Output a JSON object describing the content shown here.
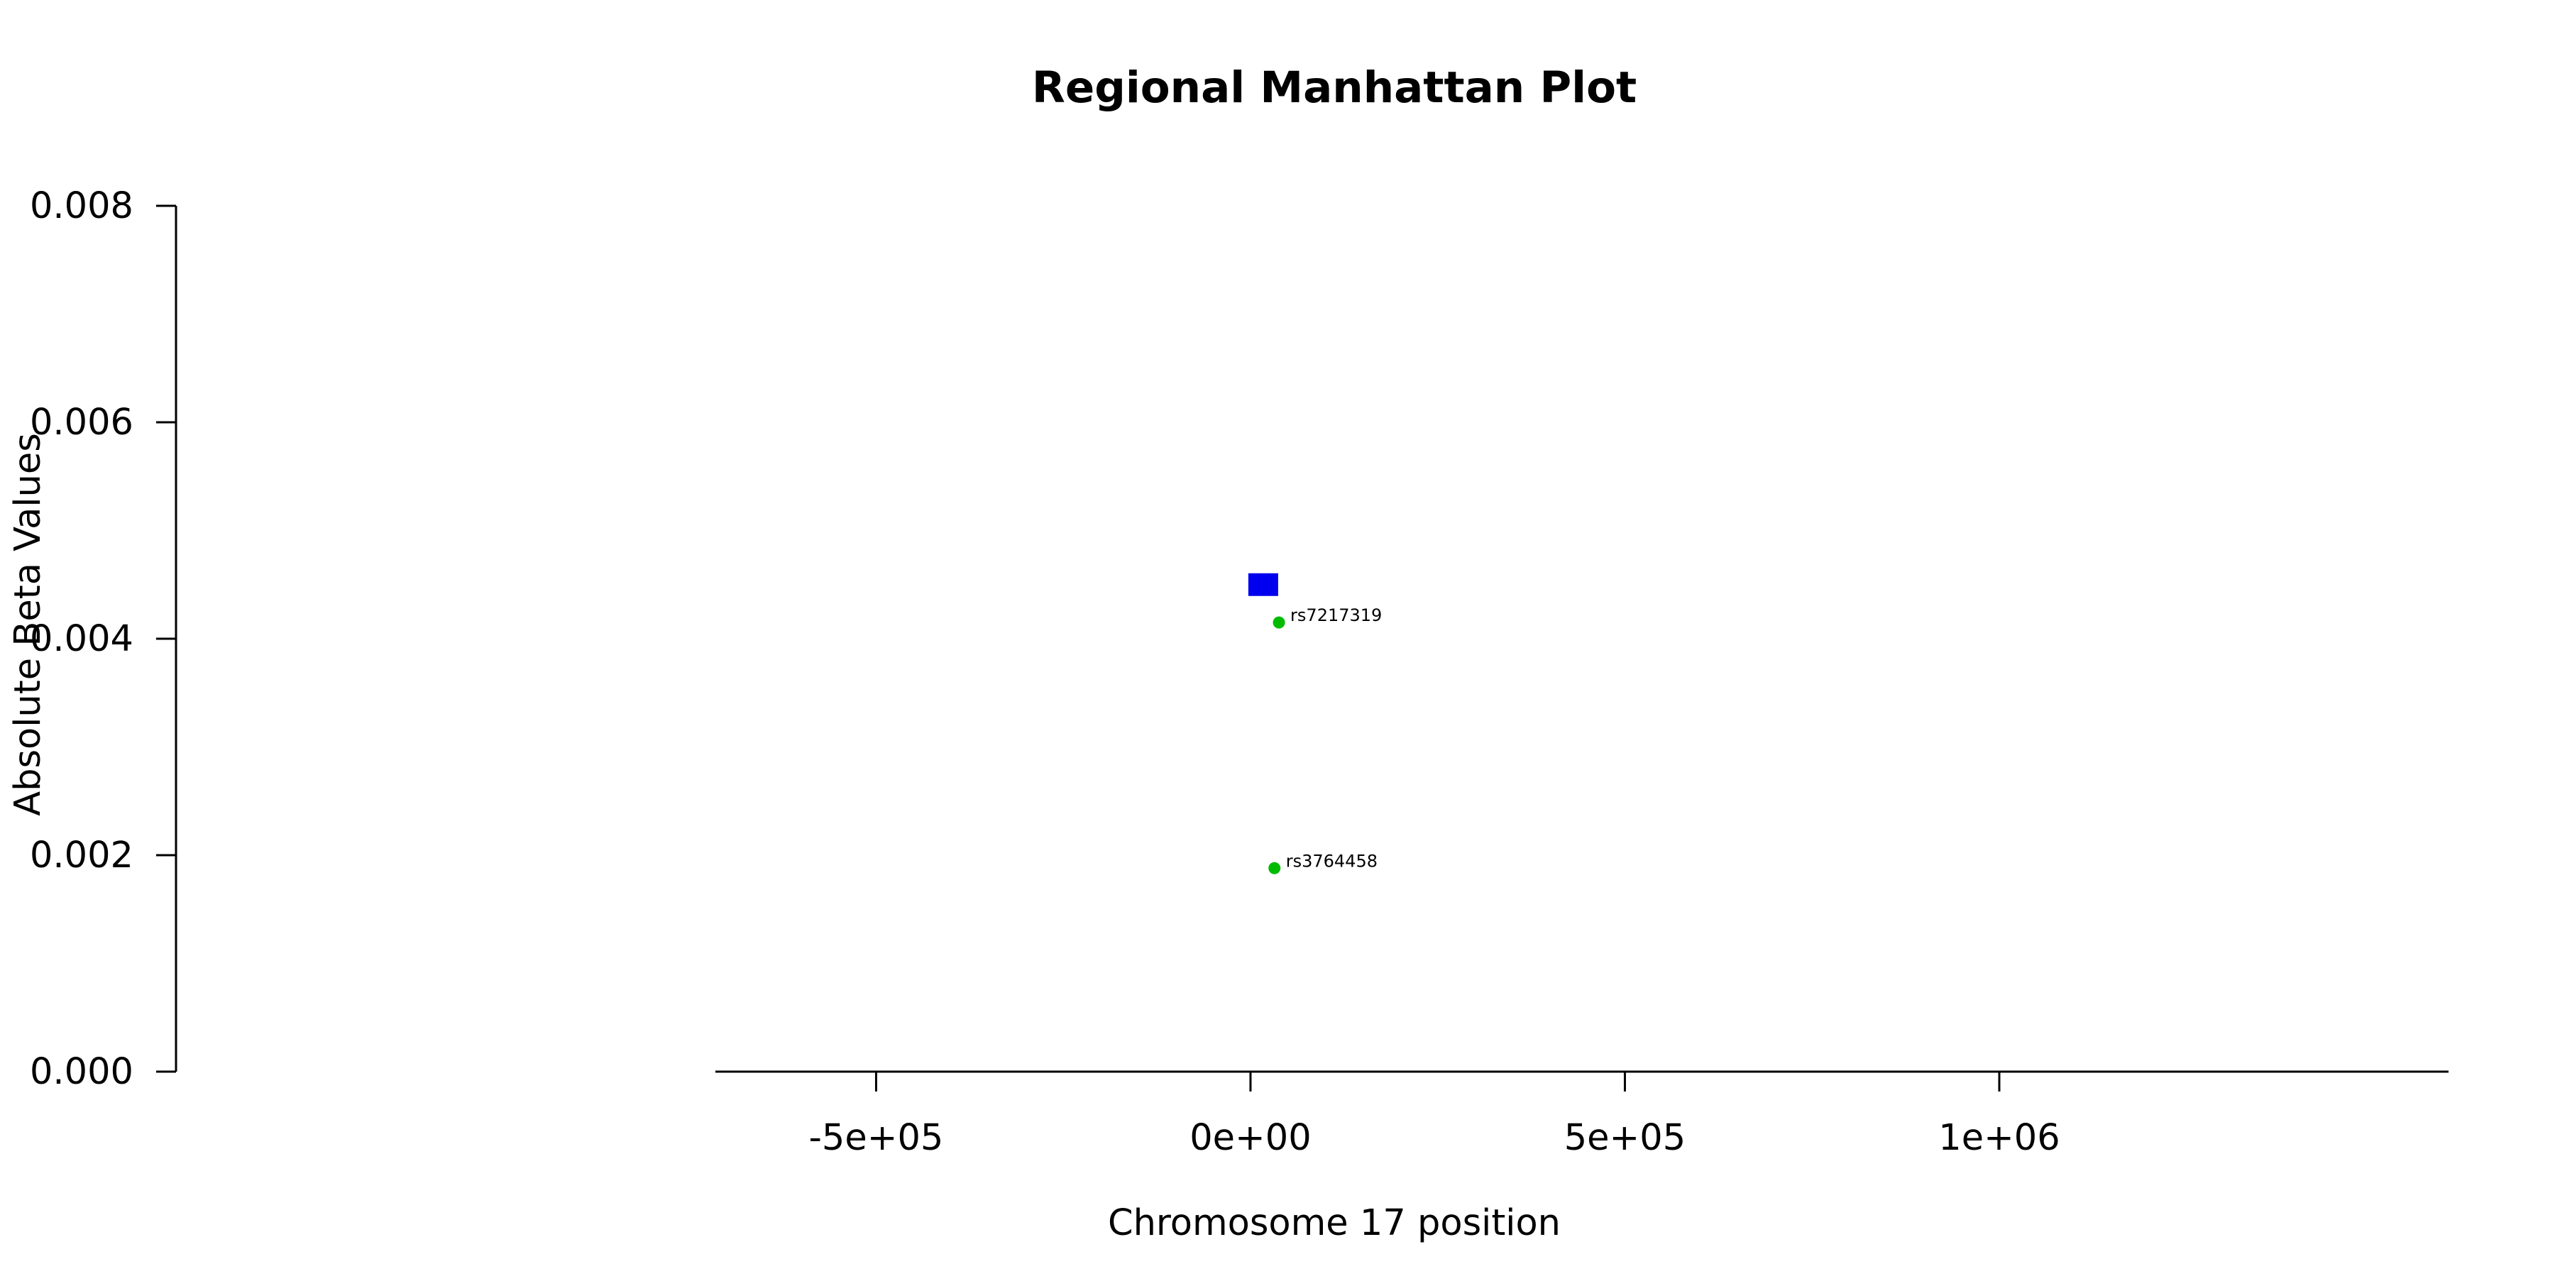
{
  "chart_data": {
    "type": "scatter",
    "title": "Regional Manhattan Plot",
    "xlabel": "Chromosome 17 position",
    "ylabel": "Absolute Beta Values",
    "xlim": [
      -1435000,
      1600000
    ],
    "ylim": [
      0,
      0.008
    ],
    "x_ticks": [
      {
        "value": -500000,
        "label": "-5e+05"
      },
      {
        "value": 0,
        "label": "0e+00"
      },
      {
        "value": 500000,
        "label": "5e+05"
      },
      {
        "value": 1000000,
        "label": "1e+06"
      }
    ],
    "y_ticks": [
      {
        "value": 0,
        "label": "0.000"
      },
      {
        "value": 0.002,
        "label": "0.002"
      },
      {
        "value": 0.004,
        "label": "0.004"
      },
      {
        "value": 0.006,
        "label": "0.006"
      },
      {
        "value": 0.008,
        "label": "0.008"
      }
    ],
    "grid": false,
    "series": [
      {
        "marker": "square",
        "color": "#0000ee",
        "points": [
          {
            "x": 17000,
            "y": 0.0045,
            "label": ""
          }
        ]
      },
      {
        "marker": "circle",
        "color": "#00bb00",
        "points": [
          {
            "x": 38000,
            "y": 0.00415,
            "label": "rs7217319"
          },
          {
            "x": 32000,
            "y": 0.00188,
            "label": "rs3764458"
          }
        ]
      }
    ]
  }
}
